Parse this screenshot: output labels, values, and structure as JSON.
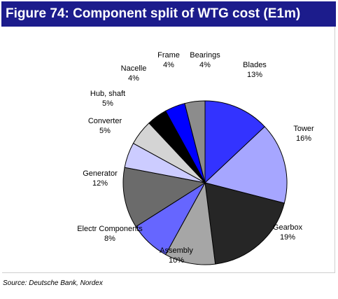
{
  "figure": {
    "title": "Figure 74: Component split of WTG cost (E1m)",
    "source": "Source: Deutsche Bank, Nordex"
  },
  "chart_data": {
    "type": "pie",
    "slices": [
      {
        "name": "Blades",
        "value": 13,
        "label": "13%",
        "color": "#3333ff"
      },
      {
        "name": "Tower",
        "value": 16,
        "label": "16%",
        "color": "#a6a6ff"
      },
      {
        "name": "Gearbox",
        "value": 19,
        "label": "19%",
        "color": "#262626"
      },
      {
        "name": "Assembly",
        "value": 10,
        "label": "10%",
        "color": "#a6a6a6"
      },
      {
        "name": "Electr Components",
        "value": 8,
        "label": "8%",
        "color": "#6666ff"
      },
      {
        "name": "Generator",
        "value": 12,
        "label": "12%",
        "color": "#6b6b6b"
      },
      {
        "name": "Converter",
        "value": 5,
        "label": "5%",
        "color": "#ccccff"
      },
      {
        "name": "Hub, shaft",
        "value": 5,
        "label": "5%",
        "color": "#d4d4d4"
      },
      {
        "name": "Nacelle",
        "value": 4,
        "label": "4%",
        "color": "#000000"
      },
      {
        "name": "Frame",
        "value": 4,
        "label": "4%",
        "color": "#0000ff"
      },
      {
        "name": "Bearings",
        "value": 4,
        "label": "4%",
        "color": "#8c8c8c"
      }
    ],
    "start": "12 o'clock",
    "direction": "clockwise",
    "legend": "none"
  }
}
